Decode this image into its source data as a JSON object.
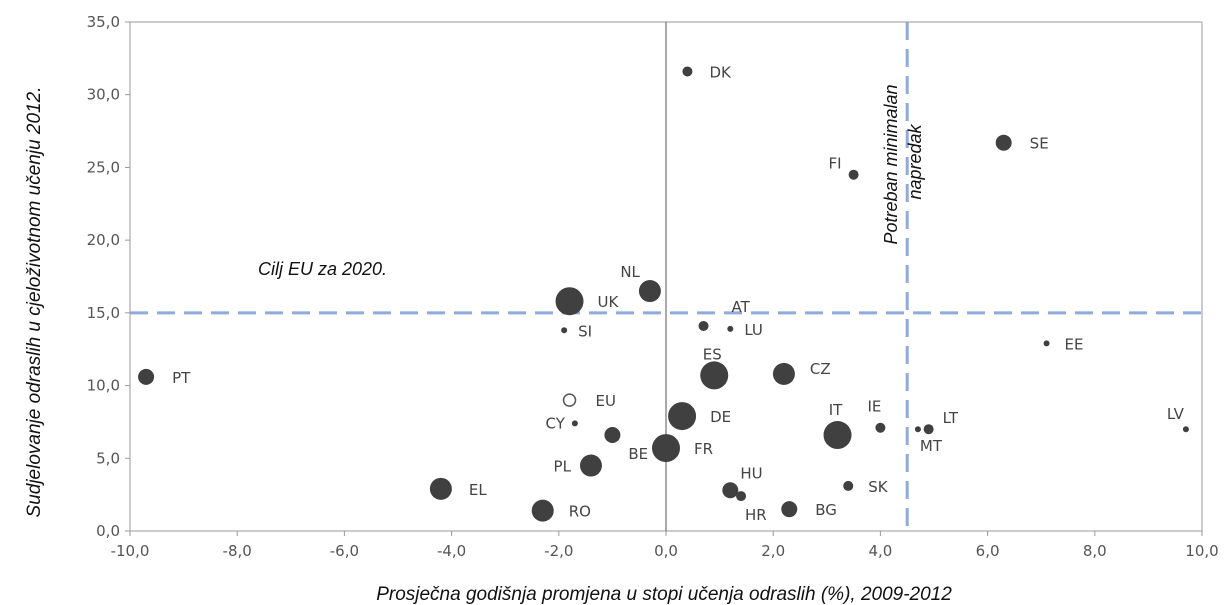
{
  "chart_data": {
    "type": "scatter",
    "xlabel": "Prosječna godišnja promjena u stopi učenja odraslih (%), 2009-2012",
    "ylabel": "Sudjelovanje odraslih u cjeloživotnom učenju 2012.",
    "xlim": [
      -10,
      10
    ],
    "ylim": [
      0,
      35
    ],
    "x_ticks": [
      "-10,0",
      "-8,0",
      "-6,0",
      "-4,0",
      "-2,0",
      "0,0",
      "2,0",
      "4,0",
      "6,0",
      "8,0",
      "10,0"
    ],
    "y_ticks": [
      "0,0",
      "5,0",
      "10,0",
      "15,0",
      "20,0",
      "25,0",
      "30,0",
      "35,0"
    ],
    "grid": false,
    "reference_lines": {
      "eu_target_y": 15,
      "min_progress_x": 4.5,
      "color": "#8faadc"
    },
    "annotations": {
      "target": "Cilj EU za 2020.",
      "progress": "Potreban minimalan napredak"
    },
    "points": [
      {
        "label": "DK",
        "x": 0.4,
        "y": 31.6,
        "size": "small"
      },
      {
        "label": "SE",
        "x": 6.3,
        "y": 26.7,
        "size": "medium"
      },
      {
        "label": "FI",
        "x": 3.5,
        "y": 24.5,
        "size": "small"
      },
      {
        "label": "NL",
        "x": -0.3,
        "y": 16.5,
        "size": "large"
      },
      {
        "label": "UK",
        "x": -1.8,
        "y": 15.8,
        "size": "xlarge"
      },
      {
        "label": "AT",
        "x": 0.7,
        "y": 14.1,
        "size": "small"
      },
      {
        "label": "LU",
        "x": 1.2,
        "y": 13.9,
        "size": "tiny"
      },
      {
        "label": "SI",
        "x": -1.9,
        "y": 13.8,
        "size": "tiny"
      },
      {
        "label": "EE",
        "x": 7.1,
        "y": 12.9,
        "size": "tiny"
      },
      {
        "label": "PT",
        "x": -9.7,
        "y": 10.6,
        "size": "medium"
      },
      {
        "label": "ES",
        "x": 0.9,
        "y": 10.7,
        "size": "xlarge"
      },
      {
        "label": "CZ",
        "x": 2.2,
        "y": 10.8,
        "size": "large"
      },
      {
        "label": "EU",
        "x": -1.8,
        "y": 9.0,
        "size": "open"
      },
      {
        "label": "DE",
        "x": 0.3,
        "y": 7.9,
        "size": "xlarge"
      },
      {
        "label": "CY",
        "x": -1.7,
        "y": 7.4,
        "size": "tiny"
      },
      {
        "label": "IT",
        "x": 3.2,
        "y": 6.6,
        "size": "xlarge"
      },
      {
        "label": "IE",
        "x": 4.0,
        "y": 7.1,
        "size": "small"
      },
      {
        "label": "LT",
        "x": 4.9,
        "y": 7.0,
        "size": "small"
      },
      {
        "label": "MT",
        "x": 4.7,
        "y": 7.0,
        "size": "tiny"
      },
      {
        "label": "LV",
        "x": 9.7,
        "y": 7.0,
        "size": "tiny"
      },
      {
        "label": "BE",
        "x": -1.0,
        "y": 6.6,
        "size": "medium"
      },
      {
        "label": "FR",
        "x": 0.0,
        "y": 5.7,
        "size": "xlarge"
      },
      {
        "label": "PL",
        "x": -1.4,
        "y": 4.5,
        "size": "large"
      },
      {
        "label": "HU",
        "x": 1.2,
        "y": 2.8,
        "size": "medium"
      },
      {
        "label": "HR",
        "x": 1.4,
        "y": 2.4,
        "size": "small"
      },
      {
        "label": "SK",
        "x": 3.4,
        "y": 3.1,
        "size": "small"
      },
      {
        "label": "EL",
        "x": -4.2,
        "y": 2.9,
        "size": "large"
      },
      {
        "label": "BG",
        "x": 2.3,
        "y": 1.5,
        "size": "medium"
      },
      {
        "label": "RO",
        "x": -2.3,
        "y": 1.4,
        "size": "large"
      }
    ]
  }
}
